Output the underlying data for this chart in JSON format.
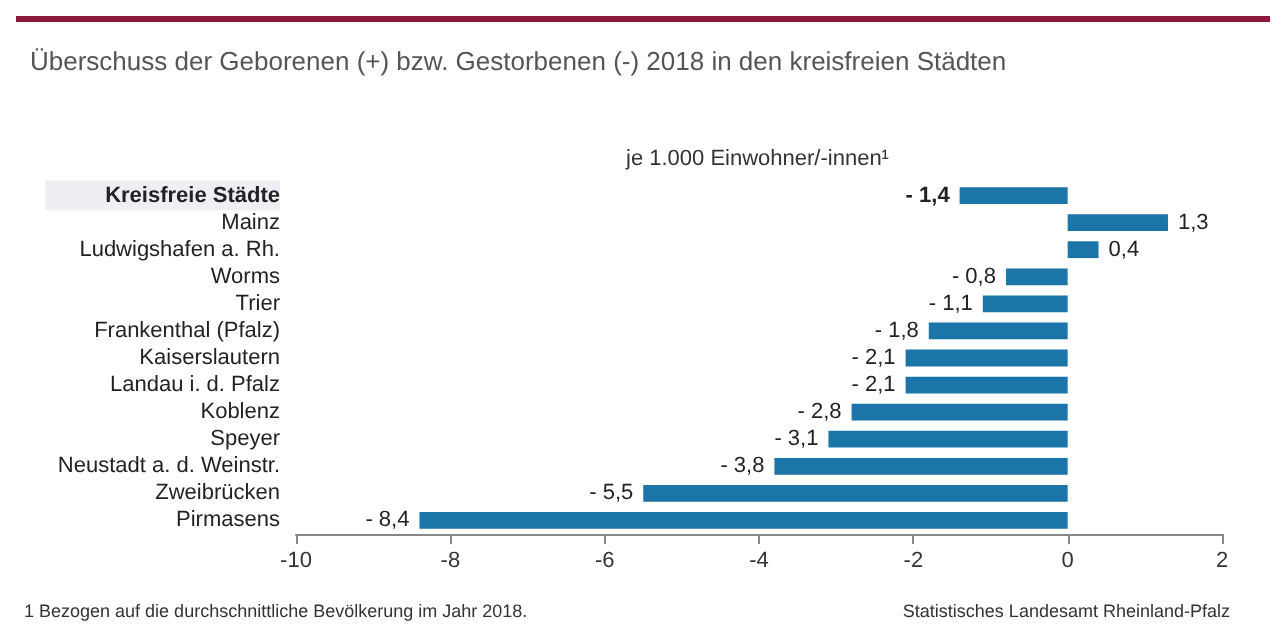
{
  "chart_data": {
    "type": "bar",
    "orientation": "horizontal",
    "title": "Überschuss der Geborenen (+) bzw. Gestorbenen (-) 2018 in den kreisfreien Städten",
    "subtitle": "je 1.000 Einwohner/-innen¹",
    "categories": [
      "Kreisfreie Städte",
      "Mainz",
      "Ludwigshafen a. Rh.",
      "Worms",
      "Trier",
      "Frankenthal (Pfalz)",
      "Kaiserslautern",
      "Landau i. d. Pfalz",
      "Koblenz",
      "Speyer",
      "Neustadt a. d. Weinstr.",
      "Zweibrücken",
      "Pirmasens"
    ],
    "values": [
      -1.4,
      1.3,
      0.4,
      -0.8,
      -1.1,
      -1.8,
      -2.1,
      -2.1,
      -2.8,
      -3.1,
      -3.8,
      -5.5,
      -8.4
    ],
    "value_labels": [
      "- 1,4",
      "1,3",
      "0,4",
      "- 0,8",
      "- 1,1",
      "- 1,8",
      "- 2,1",
      "- 2,1",
      "- 2,8",
      "- 3,1",
      "- 3,8",
      "- 5,5",
      "- 8,4"
    ],
    "color": "#1b75a8",
    "xlim": [
      -10,
      2
    ],
    "xticks": [
      -10,
      -8,
      -6,
      -4,
      -2,
      0,
      2
    ],
    "grid": false,
    "annotations": [
      "1 Bezogen auf die durchschnittliche Bevölkerung im Jahr 2018.",
      "Statistisches Landesamt Rheinland-Pfalz"
    ]
  }
}
